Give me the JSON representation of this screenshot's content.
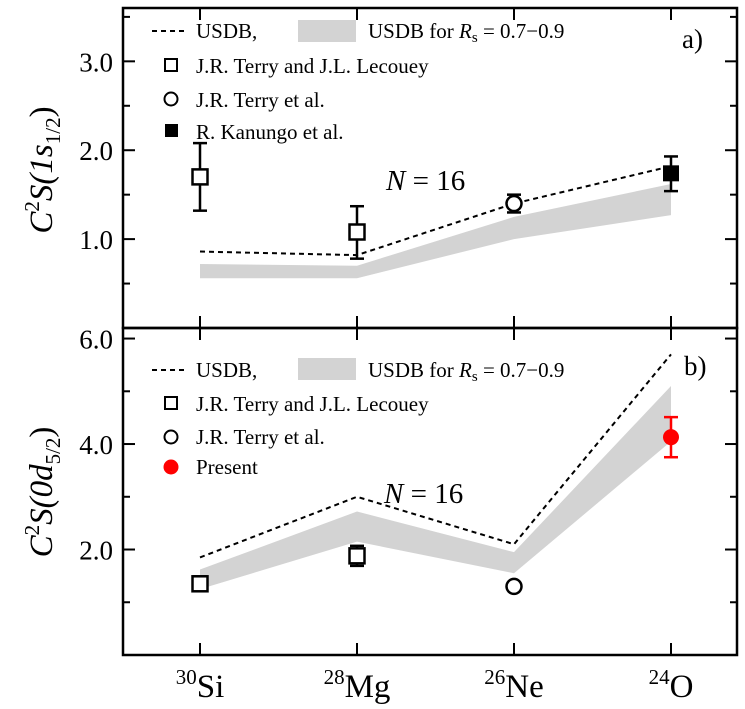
{
  "x_labels": [
    {
      "sup": "30",
      "el": "Si"
    },
    {
      "sup": "28",
      "el": "Mg"
    },
    {
      "sup": "26",
      "el": "Ne"
    },
    {
      "sup": "24",
      "el": "O"
    }
  ],
  "colors": {
    "band": "#d3d3d3",
    "present": "#ff0000",
    "axis": "#000000"
  },
  "chart_data": [
    {
      "type": "line",
      "panel_label": "a)",
      "annotation": {
        "N": "N",
        "eq": " = 16"
      },
      "ylabel": {
        "c": "C",
        "two": "2",
        "s": "S(1",
        "it": "s",
        "sub": "1/2",
        "close": ")"
      },
      "ylim": [
        0.0,
        3.6
      ],
      "yticks": [
        1.0,
        2.0,
        3.0
      ],
      "yticklabels": [
        "1.0",
        "2.0",
        "3.0"
      ],
      "legend": {
        "usdb_line": "USDB,",
        "band_prefix": "USDB for ",
        "band_r": "R",
        "band_sub": "s",
        "band_suffix": " = 0.7−0.9",
        "terry_lecouey": "J.R. Terry and J.L. Lecouey",
        "terry_etal": "J.R. Terry et al.",
        "kanungo": "R. Kanungo et al."
      },
      "usdb": [
        0.86,
        0.82,
        1.4,
        1.82
      ],
      "band_low": [
        0.56,
        0.56,
        1.0,
        1.27
      ],
      "band_high": [
        0.72,
        0.7,
        1.25,
        1.62
      ],
      "terry_lecouey": {
        "idx": [
          0,
          1
        ],
        "y": [
          1.7,
          1.08
        ],
        "err_low": [
          0.38,
          0.3
        ],
        "err_high": [
          0.38,
          0.29
        ]
      },
      "terry_etal": {
        "idx": [
          2
        ],
        "y": [
          1.4
        ],
        "err_low": [
          0.1
        ],
        "err_high": [
          0.1
        ]
      },
      "kanungo": {
        "idx": [
          3
        ],
        "y": [
          1.74
        ],
        "err_low": [
          0.2
        ],
        "err_high": [
          0.19
        ]
      }
    },
    {
      "type": "line",
      "panel_label": "b)",
      "annotation": {
        "N": "N",
        "eq": " = 16"
      },
      "ylabel": {
        "c": "C",
        "two": "2",
        "s": "S(0",
        "it": "d",
        "sub": "5/2",
        "close": ")"
      },
      "ylim": [
        0.0,
        6.2
      ],
      "yticks": [
        2.0,
        4.0,
        6.0
      ],
      "yticklabels": [
        "2.0",
        "4.0",
        "6.0"
      ],
      "legend": {
        "usdb_line": "USDB,",
        "band_prefix": "USDB for ",
        "band_r": "R",
        "band_sub": "s",
        "band_suffix": " = 0.7−0.9",
        "terry_lecouey": "J.R. Terry and J.L. Lecouey",
        "terry_etal": "J.R. Terry et al.",
        "present": "Present"
      },
      "usdb": [
        1.85,
        3.0,
        2.1,
        5.7
      ],
      "band_low": [
        1.25,
        2.15,
        1.55,
        4.05
      ],
      "band_high": [
        1.62,
        2.72,
        1.95,
        5.1
      ],
      "terry_lecouey": {
        "idx": [
          0,
          1
        ],
        "y": [
          1.35,
          1.88
        ],
        "err_low": [
          0.14,
          0.19
        ],
        "err_high": [
          0.14,
          0.19
        ]
      },
      "terry_etal": {
        "idx": [
          2
        ],
        "y": [
          1.3
        ],
        "err_low": [
          0.06
        ],
        "err_high": [
          0.06
        ]
      },
      "present": {
        "idx": [
          3
        ],
        "y": [
          4.13
        ],
        "err_low": [
          0.38
        ],
        "err_high": [
          0.38
        ]
      }
    }
  ]
}
